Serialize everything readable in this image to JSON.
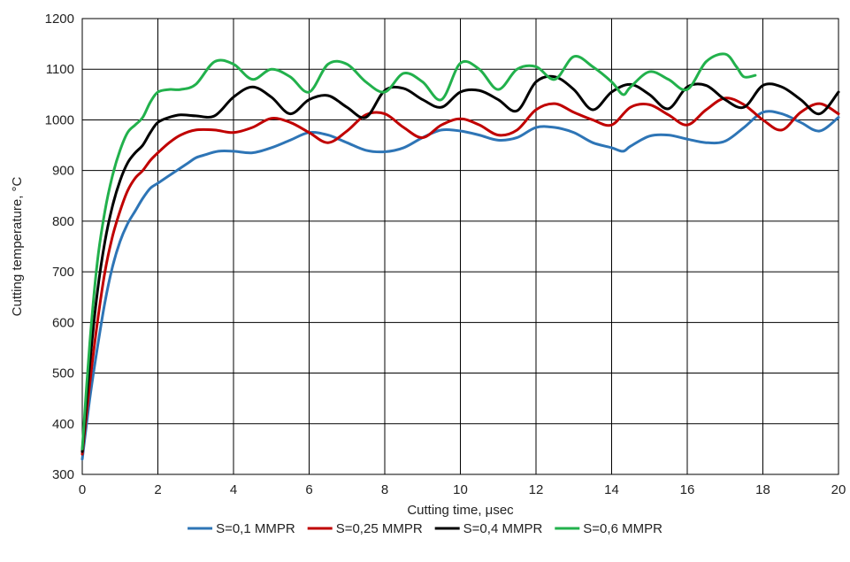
{
  "chart_data": {
    "type": "line",
    "title": "",
    "xlabel": "Cutting time, μsec",
    "ylabel": "Cutting temperature, °C",
    "xlim": [
      0,
      20
    ],
    "ylim": [
      300,
      1200
    ],
    "xticks": [
      0,
      2,
      4,
      6,
      8,
      10,
      12,
      14,
      16,
      18,
      20
    ],
    "yticks": [
      300,
      400,
      500,
      600,
      700,
      800,
      900,
      1000,
      1100,
      1200
    ],
    "grid": true,
    "legend_position": "bottom",
    "series": [
      {
        "name": "S=0,1 MMPR",
        "color": "#2e75b6",
        "x": [
          0,
          0.2,
          0.4,
          0.6,
          0.8,
          1.0,
          1.2,
          1.4,
          1.6,
          1.8,
          2.0,
          2.4,
          2.8,
          3.0,
          3.2,
          3.6,
          4.0,
          4.5,
          5.0,
          5.5,
          6.0,
          6.5,
          7.0,
          7.5,
          8.0,
          8.5,
          9.0,
          9.5,
          10.0,
          10.5,
          11.0,
          11.5,
          12.0,
          12.5,
          13.0,
          13.5,
          14.0,
          14.3,
          14.5,
          15.0,
          15.5,
          16.0,
          16.5,
          17.0,
          17.5,
          18.0,
          18.5,
          19.0,
          19.5,
          20.0
        ],
        "y": [
          330,
          450,
          550,
          640,
          710,
          760,
          795,
          820,
          845,
          865,
          875,
          895,
          915,
          925,
          930,
          938,
          938,
          935,
          945,
          960,
          975,
          970,
          955,
          940,
          937,
          945,
          965,
          980,
          978,
          970,
          960,
          965,
          985,
          985,
          975,
          955,
          945,
          938,
          948,
          968,
          970,
          962,
          955,
          958,
          985,
          1015,
          1012,
          995,
          978,
          1005
        ]
      },
      {
        "name": "S=0,25 MMPR",
        "color": "#c00000",
        "x": [
          0,
          0.2,
          0.4,
          0.6,
          0.8,
          1.0,
          1.2,
          1.4,
          1.6,
          1.8,
          2.0,
          2.3,
          2.6,
          3.0,
          3.5,
          4.0,
          4.5,
          5.0,
          5.5,
          6.0,
          6.5,
          7.0,
          7.5,
          8.0,
          8.5,
          9.0,
          9.5,
          10.0,
          10.5,
          11.0,
          11.5,
          12.0,
          12.5,
          13.0,
          13.5,
          14.0,
          14.5,
          15.0,
          15.5,
          16.0,
          16.5,
          17.0,
          17.5,
          18.0,
          18.5,
          19.0,
          19.5,
          20.0
        ],
        "y": [
          340,
          480,
          600,
          700,
          770,
          820,
          860,
          885,
          900,
          920,
          935,
          955,
          970,
          980,
          980,
          975,
          985,
          1003,
          995,
          975,
          955,
          978,
          1010,
          1012,
          985,
          965,
          990,
          1002,
          990,
          970,
          980,
          1020,
          1032,
          1015,
          1000,
          990,
          1025,
          1030,
          1010,
          990,
          1020,
          1043,
          1030,
          1000,
          980,
          1015,
          1032,
          1012
        ]
      },
      {
        "name": "S=0,4 MMPR",
        "color": "#000000",
        "x": [
          0,
          0.2,
          0.4,
          0.6,
          0.8,
          1.0,
          1.2,
          1.4,
          1.6,
          1.8,
          2.0,
          2.3,
          2.6,
          3.0,
          3.5,
          4.0,
          4.5,
          5.0,
          5.5,
          6.0,
          6.5,
          7.0,
          7.5,
          8.0,
          8.5,
          9.0,
          9.5,
          10.0,
          10.5,
          11.0,
          11.5,
          12.0,
          12.5,
          13.0,
          13.5,
          14.0,
          14.5,
          15.0,
          15.5,
          16.0,
          16.5,
          17.0,
          17.5,
          18.0,
          18.5,
          19.0,
          19.5,
          20.0
        ],
        "y": [
          345,
          520,
          660,
          760,
          830,
          880,
          915,
          935,
          950,
          975,
          995,
          1005,
          1010,
          1008,
          1008,
          1045,
          1065,
          1045,
          1012,
          1040,
          1048,
          1025,
          1005,
          1058,
          1062,
          1040,
          1025,
          1055,
          1058,
          1040,
          1018,
          1075,
          1085,
          1060,
          1020,
          1055,
          1070,
          1050,
          1022,
          1065,
          1068,
          1040,
          1025,
          1068,
          1065,
          1040,
          1012,
          1055
        ]
      },
      {
        "name": "S=0,6 MMPR",
        "color": "#22b14c",
        "x": [
          0,
          0.2,
          0.4,
          0.6,
          0.8,
          1.0,
          1.2,
          1.4,
          1.6,
          1.8,
          2.0,
          2.3,
          2.6,
          3.0,
          3.5,
          4.0,
          4.5,
          5.0,
          5.5,
          6.0,
          6.5,
          7.0,
          7.5,
          8.0,
          8.5,
          9.0,
          9.5,
          10.0,
          10.5,
          11.0,
          11.5,
          12.0,
          12.5,
          13.0,
          13.5,
          14.0,
          14.3,
          14.5,
          15.0,
          15.5,
          16.0,
          16.5,
          17.0,
          17.3,
          17.5,
          17.8
        ],
        "y": [
          350,
          560,
          720,
          820,
          890,
          940,
          975,
          990,
          1005,
          1035,
          1055,
          1060,
          1060,
          1070,
          1115,
          1110,
          1080,
          1100,
          1085,
          1055,
          1110,
          1110,
          1075,
          1055,
          1092,
          1075,
          1040,
          1112,
          1100,
          1060,
          1100,
          1105,
          1080,
          1125,
          1105,
          1075,
          1050,
          1065,
          1095,
          1080,
          1060,
          1115,
          1130,
          1105,
          1085,
          1088
        ]
      }
    ]
  }
}
